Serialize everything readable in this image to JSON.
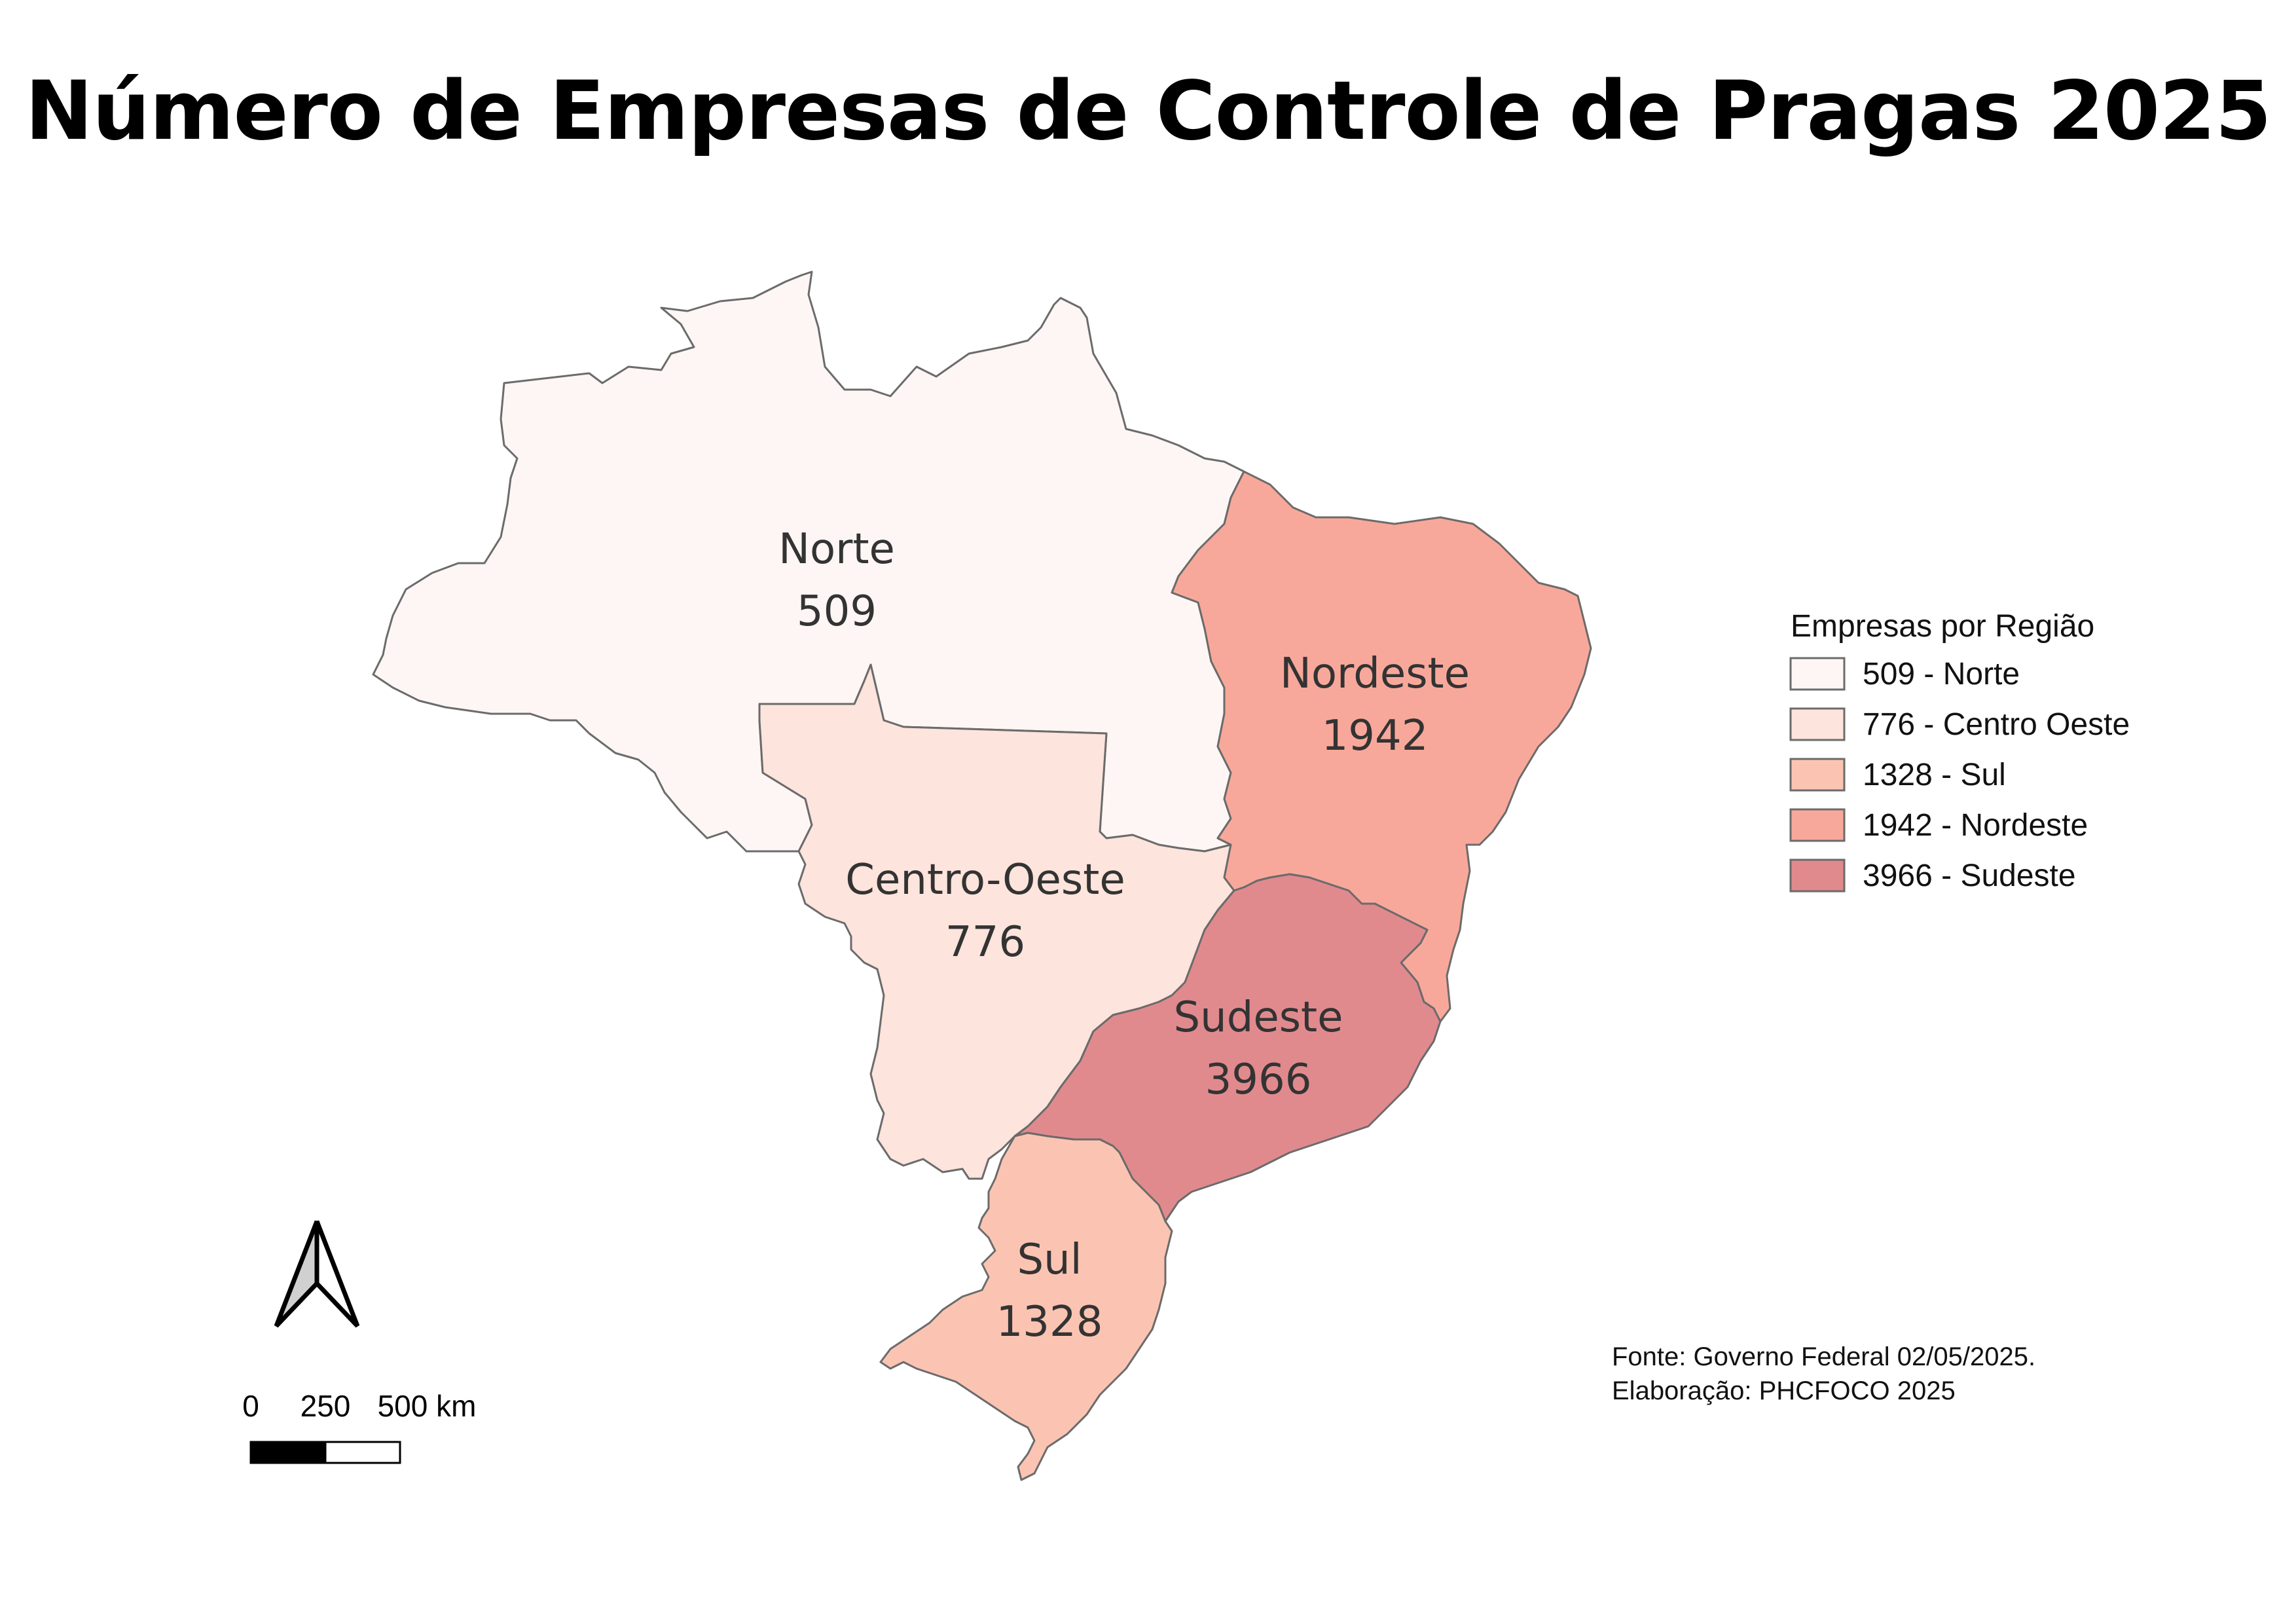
{
  "map": {
    "title": "Número de Empresas de Controle de Pragas 2025",
    "regions": [
      {
        "id": "norte",
        "name": "Norte",
        "value": "509",
        "color": "#fdf6f4"
      },
      {
        "id": "centro-oeste",
        "name": "Centro-Oeste",
        "value": "776",
        "color": "#fde4dc"
      },
      {
        "id": "sul",
        "name": "Sul",
        "value": "1328",
        "color": "#fbc4b2"
      },
      {
        "id": "nordeste",
        "name": "Nordeste",
        "value": "1942",
        "color": "#f8a89a"
      },
      {
        "id": "sudeste",
        "name": "Sudeste",
        "value": "3966",
        "color": "#e18a8e"
      }
    ],
    "border_color": "#6b6b6b"
  },
  "legend": {
    "title": "Empresas por Região",
    "items": [
      {
        "label": "509 - Norte",
        "color": "#fdf6f4"
      },
      {
        "label": "776 - Centro Oeste",
        "color": "#fde4dc"
      },
      {
        "label": "1328 - Sul",
        "color": "#fbc4b2"
      },
      {
        "label": "1942 - Nordeste",
        "color": "#f8a89a"
      },
      {
        "label": "3966 - Sudeste",
        "color": "#e18a8e"
      }
    ]
  },
  "scale_bar": {
    "labels": [
      "0",
      "250",
      "500 km"
    ]
  },
  "north_arrow": {
    "icon": "north-arrow-icon"
  },
  "source": {
    "line1": "Fonte: Governo Federal 02/05/2025.",
    "line2": "Elaboração: PHCFOCO 2025"
  }
}
